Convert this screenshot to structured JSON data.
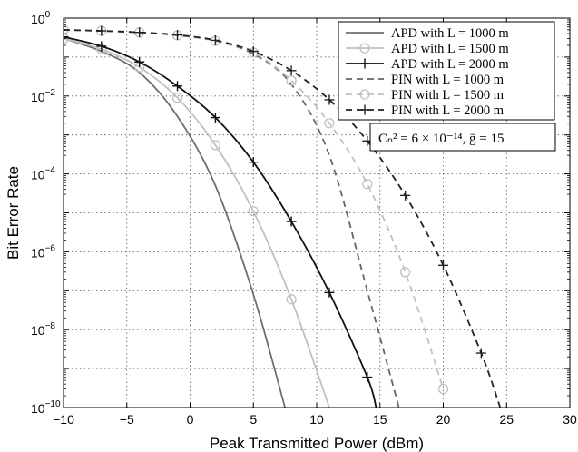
{
  "chart_data": {
    "type": "line",
    "title": "",
    "xlabel": "Peak Transmitted Power (dBm)",
    "ylabel": "Bit Error Rate",
    "xlim": [
      -10,
      30
    ],
    "ylim": [
      1e-10,
      1
    ],
    "yscale": "log",
    "grid": true,
    "legend_position": "top-right",
    "x_ticks": [
      "−10",
      "−5",
      "0",
      "5",
      "10",
      "15",
      "20",
      "25",
      "30"
    ],
    "y_ticks": [
      {
        "base": "10",
        "exp": "0"
      },
      {
        "base": "10",
        "exp": "−2"
      },
      {
        "base": "10",
        "exp": "−4"
      },
      {
        "base": "10",
        "exp": "−6"
      },
      {
        "base": "10",
        "exp": "−8"
      },
      {
        "base": "10",
        "exp": "−10"
      }
    ],
    "annotation": "Cₙ² = 6 × 10⁻¹⁴, ḡ = 15",
    "series": [
      {
        "name": "APD with L = 1000 m",
        "color": "#6e6e6e",
        "dash": "solid",
        "marker": "none",
        "x": [
          -10,
          -7,
          -4,
          -1,
          2,
          5,
          7.5
        ],
        "y": [
          0.3,
          0.14,
          0.04,
          0.003,
          5e-05,
          8e-08,
          1e-10
        ]
      },
      {
        "name": "APD with L = 1500 m",
        "color": "#c0c0c0",
        "dash": "solid",
        "marker": "circle",
        "x": [
          -10,
          -7,
          -4,
          -1,
          2,
          5,
          8,
          11
        ],
        "y": [
          0.3,
          0.16,
          0.055,
          0.009,
          0.00055,
          1.1e-05,
          6e-08,
          1e-10
        ]
      },
      {
        "name": "APD with L = 2000 m",
        "color": "#111111",
        "dash": "solid",
        "marker": "plus",
        "x": [
          -10,
          -7,
          -4,
          -1,
          2,
          5,
          8,
          11,
          14,
          14.7
        ],
        "y": [
          0.33,
          0.19,
          0.075,
          0.018,
          0.0028,
          0.0002,
          6e-06,
          9e-08,
          6e-10,
          1e-10
        ]
      },
      {
        "name": "PIN with L = 1000 m",
        "color": "#666666",
        "dash": "dashed",
        "marker": "none",
        "x": [
          -10,
          -7,
          -4,
          -1,
          2,
          5,
          8,
          11,
          14,
          16.5
        ],
        "y": [
          0.5,
          0.47,
          0.43,
          0.36,
          0.26,
          0.12,
          0.02,
          0.0003,
          1e-07,
          1e-10
        ]
      },
      {
        "name": "PIN with L = 1500 m",
        "color": "#c0c0c0",
        "dash": "dashed",
        "marker": "circle",
        "x": [
          -10,
          -7,
          -4,
          -1,
          2,
          5,
          8,
          11,
          14,
          17,
          20
        ],
        "y": [
          0.5,
          0.47,
          0.43,
          0.36,
          0.26,
          0.13,
          0.025,
          0.002,
          5.5e-05,
          3e-07,
          3e-10
        ]
      },
      {
        "name": "PIN with L = 2000 m",
        "color": "#222222",
        "dash": "dashed",
        "marker": "plus",
        "x": [
          -10,
          -7,
          -4,
          -1,
          2,
          5,
          8,
          11,
          14,
          17,
          20,
          23,
          24.5
        ],
        "y": [
          0.5,
          0.47,
          0.43,
          0.37,
          0.27,
          0.14,
          0.045,
          0.008,
          0.0007,
          2.8e-05,
          4.5e-07,
          2.5e-09,
          1e-10
        ]
      }
    ]
  }
}
